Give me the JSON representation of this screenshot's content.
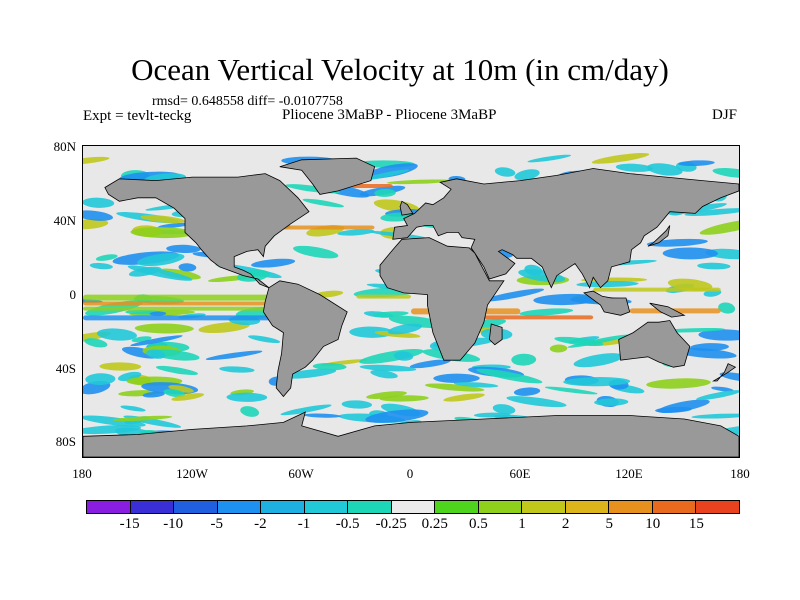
{
  "title": "Ocean Vertical Velocity at 10m (in cm/day)",
  "stats_line": "rmsd= 0.648558 diff= -0.0107758",
  "experiment": "Expt = tevlt-teckg",
  "comparison": "Pliocene   3MaBP - Pliocene   3MaBP",
  "season": "DJF",
  "y_ticks": [
    "80N",
    "40N",
    "0",
    "40S",
    "80S"
  ],
  "x_ticks": [
    "180",
    "120W",
    "60W",
    "0",
    "60E",
    "120E",
    "180"
  ],
  "colorbar": {
    "colors": [
      "#8a1ee0",
      "#3a2fd6",
      "#1f5fe0",
      "#1e90ef",
      "#1db0e0",
      "#20c8d8",
      "#1dd6b8",
      "#eaeaea",
      "#4ed41c",
      "#8ed01c",
      "#c0c81c",
      "#dcb41c",
      "#e6901e",
      "#e86a1e",
      "#e8421e"
    ],
    "labels": [
      "-15",
      "-10",
      "-5",
      "-2",
      "-1",
      "-0.5",
      "-0.25",
      "0.25",
      "0.5",
      "1",
      "2",
      "5",
      "10",
      "15"
    ]
  },
  "map_colors": {
    "land": "#999999",
    "ocean_background": "#e8e8e8",
    "blue": "#1e90ef",
    "cyan": "#20c8d8",
    "teal": "#1dd6b8",
    "green": "#8ed01c",
    "yellow": "#c0c81c",
    "orange": "#e6901e",
    "red": "#e86a1e"
  }
}
